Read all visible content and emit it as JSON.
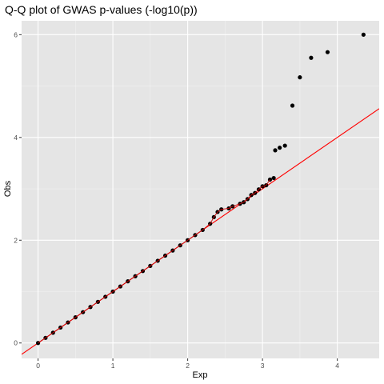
{
  "chart_data": {
    "type": "scatter",
    "title": "Q-Q plot of GWAS p-values (-log10(p))",
    "xlabel": "Exp",
    "ylabel": "Obs",
    "xlim": [
      -0.22,
      4.56
    ],
    "ylim": [
      -0.3,
      6.27
    ],
    "x_ticks": [
      0,
      1,
      2,
      3,
      4
    ],
    "y_ticks": [
      0,
      2,
      4,
      6
    ],
    "x_tick_labels": [
      "0",
      "1",
      "2",
      "3",
      "4"
    ],
    "y_tick_labels": [
      "0",
      "2",
      "4",
      "6"
    ],
    "grid": true,
    "legend": "none",
    "colors": {
      "panel_background": "#e5e5e5",
      "grid_major": "#ffffff",
      "grid_minor": "#f2f2f2",
      "points": "#000000",
      "reference_line": "#ff0000",
      "smooth_line": "#cc0000"
    },
    "reference_line": {
      "slope": 1,
      "intercept": 0
    },
    "series": [
      {
        "values": [
          {
            "x": 0.0,
            "y": 0.0
          },
          {
            "x": 0.1,
            "y": 0.1
          },
          {
            "x": 0.2,
            "y": 0.2
          },
          {
            "x": 0.3,
            "y": 0.3
          },
          {
            "x": 0.4,
            "y": 0.4
          },
          {
            "x": 0.5,
            "y": 0.5
          },
          {
            "x": 0.6,
            "y": 0.6
          },
          {
            "x": 0.7,
            "y": 0.7
          },
          {
            "x": 0.8,
            "y": 0.8
          },
          {
            "x": 0.9,
            "y": 0.9
          },
          {
            "x": 1.0,
            "y": 1.0
          },
          {
            "x": 1.1,
            "y": 1.1
          },
          {
            "x": 1.2,
            "y": 1.2
          },
          {
            "x": 1.3,
            "y": 1.3
          },
          {
            "x": 1.4,
            "y": 1.4
          },
          {
            "x": 1.5,
            "y": 1.5
          },
          {
            "x": 1.6,
            "y": 1.6
          },
          {
            "x": 1.7,
            "y": 1.7
          },
          {
            "x": 1.8,
            "y": 1.8
          },
          {
            "x": 1.9,
            "y": 1.9
          },
          {
            "x": 2.0,
            "y": 2.0
          },
          {
            "x": 2.1,
            "y": 2.1
          },
          {
            "x": 2.2,
            "y": 2.2
          },
          {
            "x": 2.3,
            "y": 2.32
          },
          {
            "x": 2.35,
            "y": 2.45
          },
          {
            "x": 2.4,
            "y": 2.55
          },
          {
            "x": 2.45,
            "y": 2.6
          },
          {
            "x": 2.55,
            "y": 2.62
          },
          {
            "x": 2.6,
            "y": 2.66
          },
          {
            "x": 2.7,
            "y": 2.71
          },
          {
            "x": 2.75,
            "y": 2.74
          },
          {
            "x": 2.8,
            "y": 2.8
          },
          {
            "x": 2.85,
            "y": 2.88
          },
          {
            "x": 2.9,
            "y": 2.92
          },
          {
            "x": 2.95,
            "y": 2.99
          },
          {
            "x": 3.0,
            "y": 3.05
          },
          {
            "x": 3.05,
            "y": 3.07
          },
          {
            "x": 3.1,
            "y": 3.18
          },
          {
            "x": 3.15,
            "y": 3.21
          },
          {
            "x": 3.17,
            "y": 3.75
          },
          {
            "x": 3.23,
            "y": 3.8
          },
          {
            "x": 3.3,
            "y": 3.84
          },
          {
            "x": 3.4,
            "y": 4.62
          },
          {
            "x": 3.5,
            "y": 5.17
          },
          {
            "x": 3.65,
            "y": 5.55
          },
          {
            "x": 3.87,
            "y": 5.66
          },
          {
            "x": 4.35,
            "y": 6.0
          }
        ]
      }
    ]
  }
}
